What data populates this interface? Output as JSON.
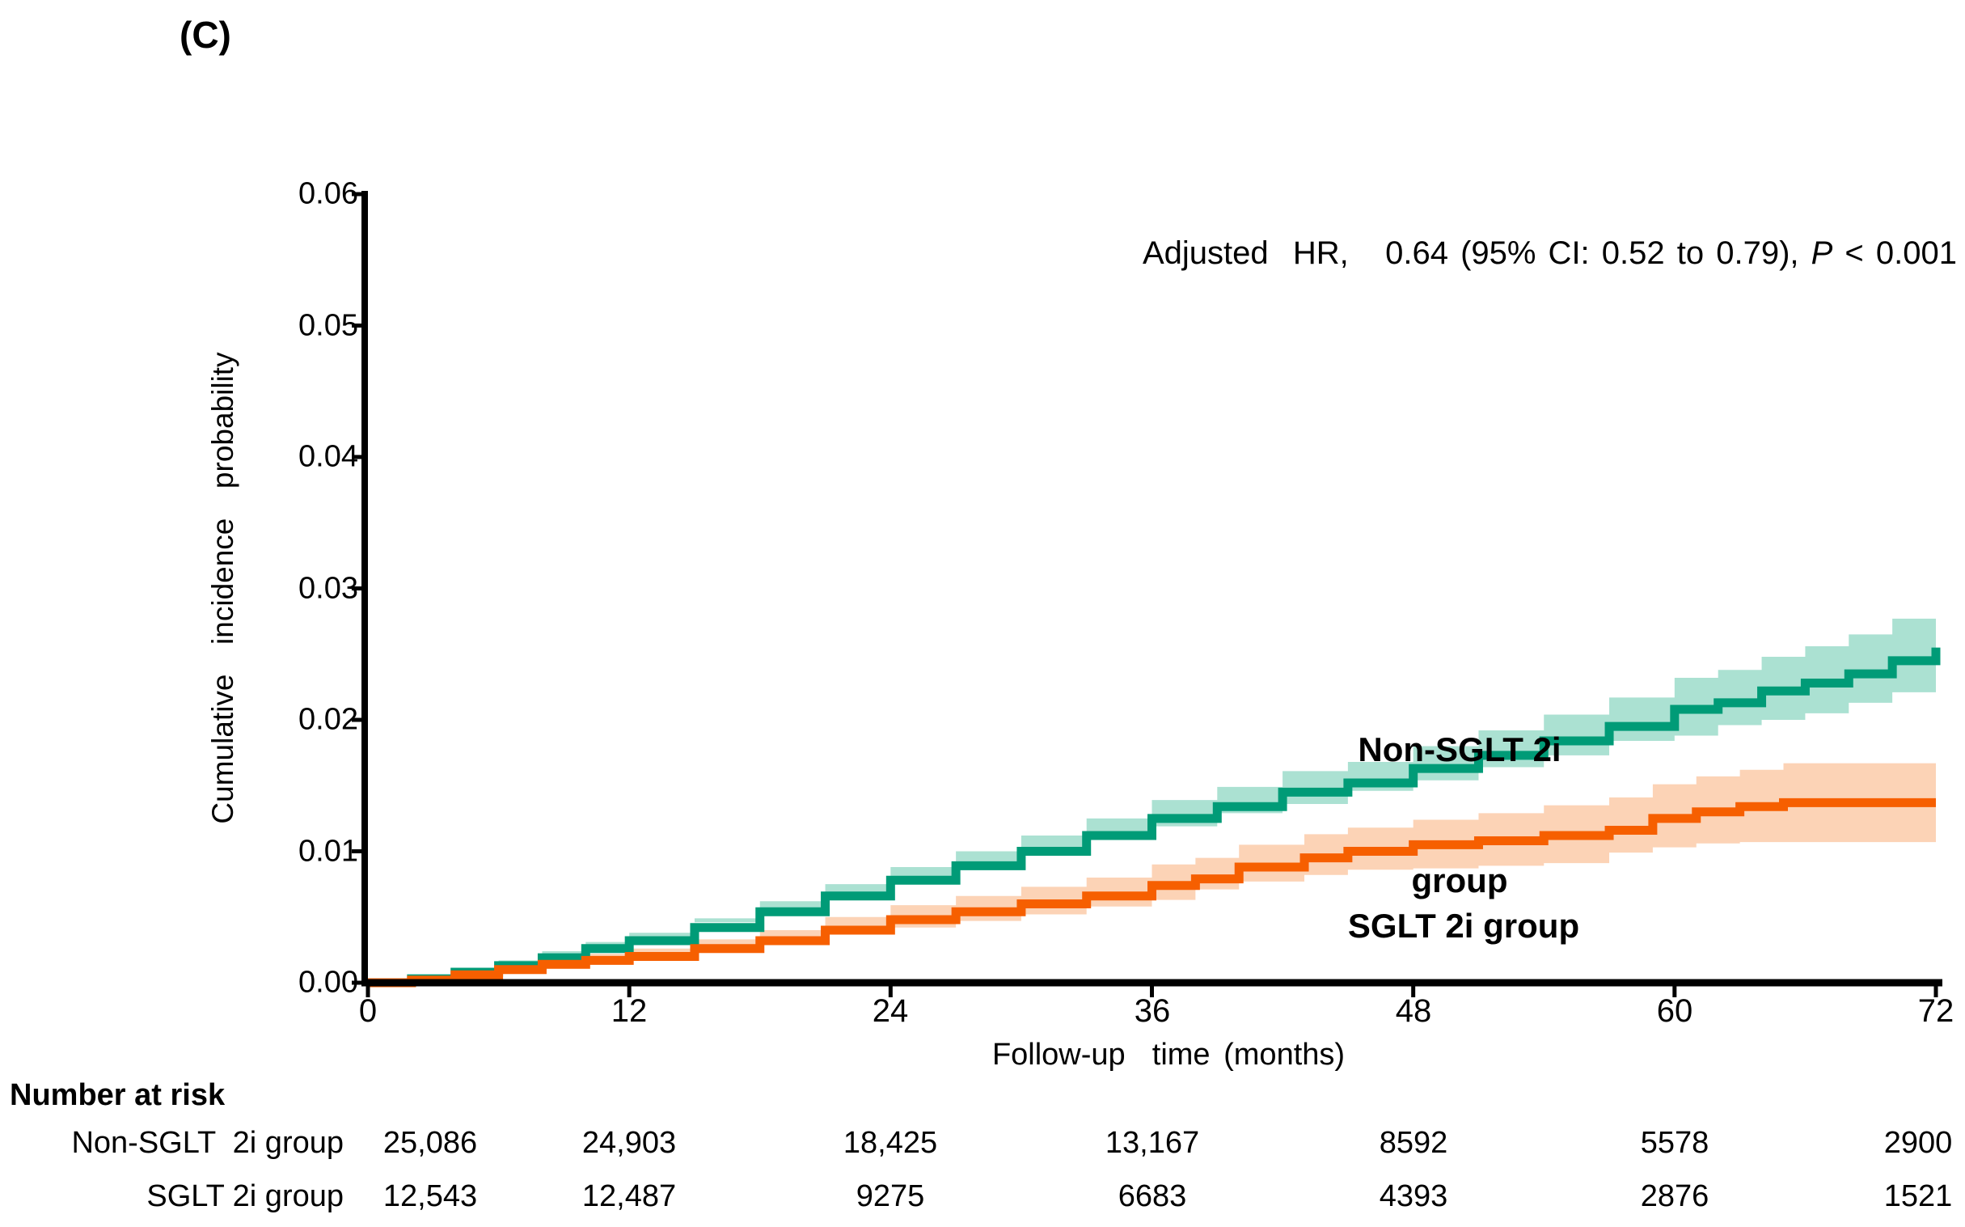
{
  "panel_label": "(C)",
  "annotation": {
    "before_p": "Adjusted  HR,   0.64 (95% CI: 0.52 to 0.79), ",
    "p": "P",
    "after_p": " < 0.001"
  },
  "y_axis": {
    "label": "Cumulative  incidence  probability",
    "ticks": [
      "0.06",
      "0.05",
      "0.04",
      "0.03",
      "0.02",
      "0.01",
      "0.00"
    ]
  },
  "x_axis": {
    "label": "Follow-up  time (months)",
    "ticks": [
      "0",
      "12",
      "24",
      "36",
      "48",
      "60",
      "72"
    ]
  },
  "curve_labels": {
    "non_sglt_line1": "Non-SGLT 2i",
    "non_sglt_line2": "group",
    "sglt": "SGLT 2i group"
  },
  "risk_table": {
    "title": "Number at risk",
    "rows": [
      {
        "label": "Non-SGLT  2i group",
        "values": [
          "25,086",
          "24,903",
          "18,425",
          "13,167",
          "8592",
          "5578",
          "2900"
        ]
      },
      {
        "label": "SGLT 2i group",
        "values": [
          "12,543",
          "12,487",
          "9275",
          "6683",
          "4393",
          "2876",
          "1521"
        ]
      }
    ]
  },
  "colors": {
    "non_sglt_line": "#009B77",
    "non_sglt_band": "#ABE1D2",
    "sglt_line": "#F65F00",
    "sglt_band": "#FCD3B6",
    "axis": "#000000"
  },
  "chart_data": {
    "type": "line",
    "subtype": "step-cumulative-incidence-with-CI-bands",
    "title": "",
    "xlabel": "Follow-up time (months)",
    "ylabel": "Cumulative incidence probability",
    "annotation": "Adjusted HR, 0.64 (95% CI: 0.52 to 0.79), P < 0.001",
    "xlim": [
      0,
      72
    ],
    "ylim": [
      0,
      0.06
    ],
    "x_tick_values": [
      0,
      12,
      24,
      36,
      48,
      60,
      72
    ],
    "y_tick_values": [
      0,
      0.01,
      0.02,
      0.03,
      0.04,
      0.05,
      0.06
    ],
    "grid": false,
    "legend_position": "inline-labels",
    "number_at_risk": {
      "times": [
        0,
        12,
        24,
        36,
        48,
        60,
        72
      ],
      "Non-SGLT 2i group": [
        25086,
        24903,
        18425,
        13167,
        8592,
        5578,
        2900
      ],
      "SGLT 2i group": [
        12543,
        12487,
        9275,
        6683,
        4393,
        2876,
        1521
      ]
    },
    "series": [
      {
        "name": "Non-SGLT 2i group",
        "color": "#009B77",
        "band_color": "#ABE1D2",
        "x": [
          0,
          2,
          4,
          6,
          8,
          10,
          12,
          15,
          18,
          21,
          24,
          27,
          30,
          33,
          36,
          39,
          42,
          45,
          48,
          51,
          54,
          57,
          60,
          62,
          64,
          66,
          68,
          70,
          72
        ],
        "y": [
          0,
          0.0003,
          0.0008,
          0.0013,
          0.0019,
          0.0026,
          0.0032,
          0.0042,
          0.0054,
          0.0066,
          0.0078,
          0.0089,
          0.01,
          0.0112,
          0.0125,
          0.0134,
          0.0145,
          0.0152,
          0.0163,
          0.0173,
          0.0184,
          0.0195,
          0.0208,
          0.0213,
          0.0222,
          0.0228,
          0.0235,
          0.0245,
          0.0255
        ],
        "upper": [
          0,
          0.0005,
          0.0011,
          0.0017,
          0.0024,
          0.0031,
          0.0038,
          0.0049,
          0.0062,
          0.0075,
          0.0088,
          0.01,
          0.0112,
          0.0125,
          0.0139,
          0.0149,
          0.0161,
          0.0168,
          0.018,
          0.0192,
          0.0204,
          0.0217,
          0.0232,
          0.0238,
          0.0248,
          0.0256,
          0.0265,
          0.0277,
          0.0289
        ],
        "lower": [
          0,
          0.0001,
          0.0005,
          0.0009,
          0.0014,
          0.0021,
          0.0026,
          0.0035,
          0.0046,
          0.0057,
          0.0068,
          0.0078,
          0.0088,
          0.0099,
          0.0111,
          0.0119,
          0.0129,
          0.0136,
          0.0146,
          0.0154,
          0.0164,
          0.0173,
          0.0184,
          0.0188,
          0.0196,
          0.02,
          0.0205,
          0.0213,
          0.0221
        ]
      },
      {
        "name": "SGLT 2i group",
        "color": "#F65F00",
        "band_color": "#FCD3B6",
        "x": [
          0,
          2,
          4,
          6,
          8,
          10,
          12,
          15,
          18,
          21,
          24,
          27,
          30,
          33,
          36,
          38,
          40,
          43,
          45,
          48,
          51,
          54,
          57,
          59,
          61,
          63,
          65,
          72
        ],
        "y": [
          0,
          0.0002,
          0.0006,
          0.001,
          0.0014,
          0.0017,
          0.002,
          0.0026,
          0.0032,
          0.004,
          0.0048,
          0.0054,
          0.006,
          0.0066,
          0.0074,
          0.0079,
          0.0088,
          0.0095,
          0.01,
          0.0105,
          0.0108,
          0.0112,
          0.0116,
          0.0125,
          0.013,
          0.0134,
          0.0137,
          0.0137
        ],
        "upper": [
          0,
          0.0004,
          0.0009,
          0.0014,
          0.0019,
          0.0022,
          0.0026,
          0.0033,
          0.004,
          0.005,
          0.0059,
          0.0066,
          0.0073,
          0.008,
          0.009,
          0.0095,
          0.0105,
          0.0113,
          0.0118,
          0.0124,
          0.0129,
          0.0135,
          0.0141,
          0.0151,
          0.0157,
          0.0162,
          0.0167,
          0.0167
        ],
        "lower": [
          0,
          0.0,
          0.0003,
          0.0006,
          0.0009,
          0.0012,
          0.0014,
          0.0019,
          0.0024,
          0.003,
          0.0037,
          0.0042,
          0.0047,
          0.0052,
          0.0058,
          0.0063,
          0.0071,
          0.0077,
          0.0082,
          0.0086,
          0.0087,
          0.0089,
          0.0091,
          0.0099,
          0.0103,
          0.0106,
          0.0107,
          0.0107
        ]
      }
    ]
  },
  "layout_note_values_visible_only": true
}
